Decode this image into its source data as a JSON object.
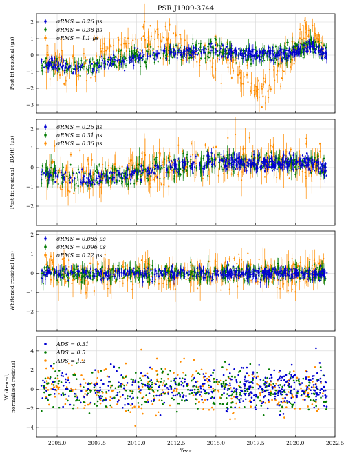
{
  "figure_title": "PSR J1909-3744",
  "colors": {
    "series1": "#0000d0",
    "series2": "#007a00",
    "series3": "#ff8c00"
  },
  "chart_data": [
    {
      "type": "scatter",
      "ylabel": "Post-fit residual (μs)",
      "xlim": [
        2003.7,
        2022.5
      ],
      "ylim": [
        -3.5,
        2.5
      ],
      "yticks": [
        "2",
        "1",
        "0",
        "-1",
        "-2",
        "-3"
      ],
      "error_bars": true,
      "series": [
        {
          "name": "σRMS = 0.26 μs",
          "color": "series1"
        },
        {
          "name": "σRMS = 0.38 μs",
          "color": "series2"
        },
        {
          "name": "σRMS = 1.1 μs",
          "color": "series3"
        }
      ],
      "trend": [
        [
          2004.0,
          -0.5
        ],
        [
          2005.0,
          -0.6
        ],
        [
          2006.0,
          -0.8
        ],
        [
          2007.0,
          -0.7
        ],
        [
          2008.0,
          -0.4
        ],
        [
          2009.0,
          -0.3
        ],
        [
          2010.0,
          -0.1
        ],
        [
          2011.0,
          0.0
        ],
        [
          2012.0,
          0.1
        ],
        [
          2013.0,
          0.2
        ],
        [
          2014.0,
          0.3
        ],
        [
          2015.0,
          0.35
        ],
        [
          2016.0,
          0.2
        ],
        [
          2017.0,
          0.05
        ],
        [
          2018.0,
          0.05
        ],
        [
          2019.0,
          0.05
        ],
        [
          2020.0,
          0.2
        ],
        [
          2020.5,
          0.4
        ],
        [
          2021.0,
          0.6
        ],
        [
          2022.0,
          0.0
        ]
      ],
      "trend_series3": [
        [
          2004.0,
          -0.3
        ],
        [
          2005.0,
          -0.7
        ],
        [
          2006.0,
          -0.8
        ],
        [
          2007.0,
          -0.6
        ],
        [
          2008.0,
          0.2
        ],
        [
          2009.0,
          0.5
        ],
        [
          2010.0,
          0.8
        ],
        [
          2011.0,
          1.0
        ],
        [
          2012.0,
          0.8
        ],
        [
          2013.0,
          0.5
        ],
        [
          2014.0,
          0.3
        ],
        [
          2015.0,
          0.1
        ],
        [
          2016.0,
          -0.3
        ],
        [
          2016.5,
          -1.2
        ],
        [
          2017.0,
          -1.8
        ],
        [
          2017.5,
          -2.0
        ],
        [
          2018.0,
          -2.1
        ],
        [
          2018.5,
          -1.6
        ],
        [
          2019.0,
          -0.9
        ],
        [
          2020.0,
          0.3
        ],
        [
          2020.5,
          1.2
        ],
        [
          2021.0,
          2.0
        ],
        [
          2021.5,
          0.8
        ],
        [
          2022.0,
          0.1
        ]
      ]
    },
    {
      "type": "scatter",
      "ylabel": "Post-fit residual - DM(t) (μs)",
      "xlim": [
        2003.7,
        2022.5
      ],
      "ylim": [
        -3.0,
        2.5
      ],
      "yticks": [
        "2",
        "1",
        "0",
        "-1",
        "-2"
      ],
      "error_bars": true,
      "series": [
        {
          "name": "σRMS = 0.26 μs",
          "color": "series1"
        },
        {
          "name": "σRMS = 0.31 μs",
          "color": "series2"
        },
        {
          "name": "σRMS = 0.36 μs",
          "color": "series3"
        }
      ],
      "trend": [
        [
          2004.0,
          -0.3
        ],
        [
          2005.0,
          -0.4
        ],
        [
          2006.0,
          -0.5
        ],
        [
          2007.0,
          -0.6
        ],
        [
          2008.0,
          -0.5
        ],
        [
          2009.0,
          -0.4
        ],
        [
          2010.0,
          -0.3
        ],
        [
          2011.0,
          -0.1
        ],
        [
          2012.0,
          0.0
        ],
        [
          2013.0,
          0.1
        ],
        [
          2014.0,
          0.2
        ],
        [
          2015.0,
          0.35
        ],
        [
          2016.0,
          0.3
        ],
        [
          2017.0,
          0.2
        ],
        [
          2018.0,
          0.2
        ],
        [
          2019.0,
          0.2
        ],
        [
          2020.0,
          0.2
        ],
        [
          2021.0,
          0.25
        ],
        [
          2022.0,
          -0.1
        ]
      ],
      "trend_series3": [
        [
          2004.0,
          -0.2
        ],
        [
          2006.0,
          -0.6
        ],
        [
          2008.0,
          -0.4
        ],
        [
          2010.0,
          -0.2
        ],
        [
          2012.0,
          0.0
        ],
        [
          2014.0,
          0.2
        ],
        [
          2015.0,
          0.5
        ],
        [
          2016.0,
          0.3
        ],
        [
          2018.0,
          0.3
        ],
        [
          2020.0,
          0.3
        ],
        [
          2022.0,
          0.0
        ]
      ]
    },
    {
      "type": "scatter",
      "ylabel": "Whitened residual (μs)",
      "xlim": [
        2003.7,
        2022.5
      ],
      "ylim": [
        -3.0,
        2.2
      ],
      "yticks": [
        "2",
        "1",
        "0",
        "-1",
        "-2"
      ],
      "error_bars": true,
      "series": [
        {
          "name": "σRMS = 0.085 μs",
          "color": "series1"
        },
        {
          "name": "σRMS = 0.096 μs",
          "color": "series2"
        },
        {
          "name": "σRMS = 0.22 μs",
          "color": "series3"
        }
      ],
      "trend": [
        [
          2004.0,
          0.0
        ],
        [
          2022.0,
          0.0
        ]
      ],
      "trend_series3": [
        [
          2004.0,
          0.0
        ],
        [
          2022.0,
          0.0
        ]
      ]
    },
    {
      "type": "scatter",
      "ylabel": "Whitened, normalised residual",
      "xlabel": "Year",
      "xlim": [
        2003.7,
        2022.5
      ],
      "ylim": [
        -5.0,
        5.5
      ],
      "yticks": [
        "4",
        "2",
        "0",
        "-2",
        "-4"
      ],
      "error_bars": false,
      "series": [
        {
          "name": "ADS = 0.31",
          "color": "series1"
        },
        {
          "name": "ADS = 0.5",
          "color": "series2"
        },
        {
          "name": "ADS = 1.2",
          "color": "series3"
        }
      ],
      "trend": [
        [
          2004.0,
          0.0
        ],
        [
          2022.0,
          0.0
        ]
      ],
      "trend_series3": [
        [
          2004.0,
          0.0
        ],
        [
          2022.0,
          0.0
        ]
      ]
    }
  ],
  "xticks": [
    {
      "value": 2005.0,
      "label": "2005.0"
    },
    {
      "value": 2007.5,
      "label": "2007.5"
    },
    {
      "value": 2010.0,
      "label": "2010.0"
    },
    {
      "value": 2012.5,
      "label": "2012.5"
    },
    {
      "value": 2015.0,
      "label": "2015.0"
    },
    {
      "value": 2017.5,
      "label": "2017.5"
    },
    {
      "value": 2020.0,
      "label": "2020.0"
    },
    {
      "value": 2022.5,
      "label": "2022.5"
    }
  ],
  "xlabel": "Year"
}
